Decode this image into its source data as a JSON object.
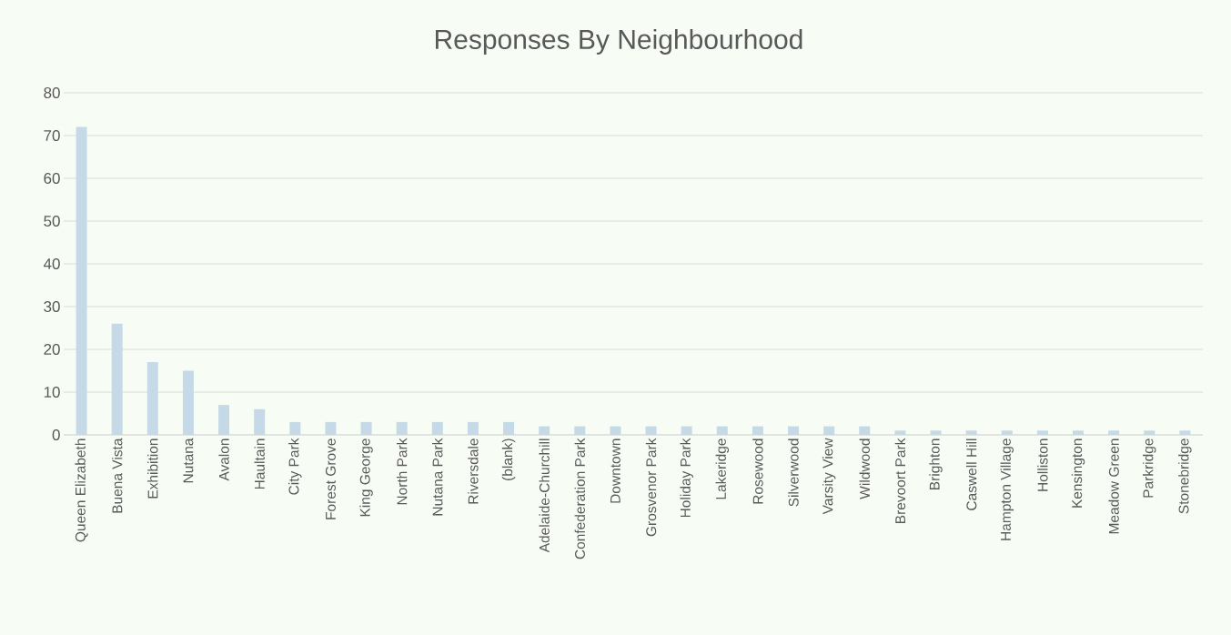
{
  "chart_data": {
    "type": "bar",
    "title": "Responses By Neighbourhood",
    "categories": [
      "Queen Elizabeth",
      "Buena Vista",
      "Exhibition",
      "Nutana",
      "Avalon",
      "Haultain",
      "City Park",
      "Forest Grove",
      "King George",
      "North Park",
      "Nutana Park",
      "Riversdale",
      "(blank)",
      "Adelaide-Churchill",
      "Confederation Park",
      "Downtown",
      "Grosvenor Park",
      "Holiday Park",
      "Lakeridge",
      "Rosewood",
      "Silverwood",
      "Varsity View",
      "Wildwood",
      "Brevoort Park",
      "Brighton",
      "Caswell Hill",
      "Hampton Village",
      "Holliston",
      "Kensington",
      "Meadow Green",
      "Parkridge",
      "Stonebridge"
    ],
    "values": [
      72,
      26,
      17,
      15,
      7,
      6,
      3,
      3,
      3,
      3,
      3,
      3,
      3,
      2,
      2,
      2,
      2,
      2,
      2,
      2,
      2,
      2,
      2,
      1,
      1,
      1,
      1,
      1,
      1,
      1,
      1,
      1
    ],
    "color": "#c5d9e6",
    "ylim": [
      0,
      80
    ],
    "yticks": [
      0,
      10,
      20,
      30,
      40,
      50,
      60,
      70,
      80
    ],
    "grid": "y"
  }
}
